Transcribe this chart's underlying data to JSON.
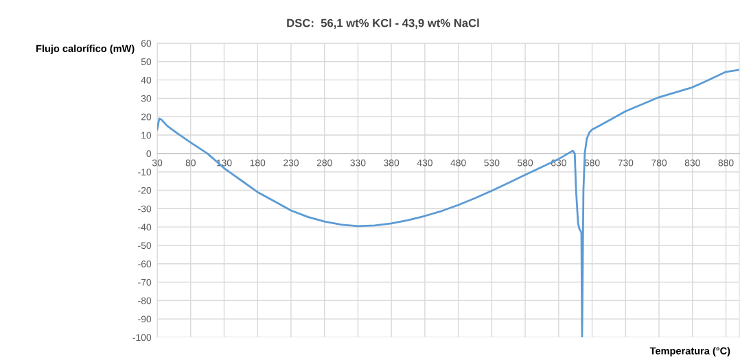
{
  "chart_data": {
    "type": "line",
    "title": "DSC:  56,1 wt% KCl - 43,9 wt% NaCl",
    "xlabel": "Temperatura (°C)",
    "ylabel": "Flujo calorífico (mW)",
    "series": [
      {
        "color": "#5b9bd5",
        "x": [
          30,
          33,
          36,
          45,
          60,
          80,
          105,
          130,
          155,
          180,
          205,
          230,
          255,
          280,
          305,
          330,
          355,
          380,
          405,
          430,
          455,
          480,
          505,
          530,
          555,
          580,
          605,
          630,
          651,
          654,
          656,
          659,
          661,
          664,
          665,
          666,
          667,
          669,
          672,
          676,
          680,
          694,
          730,
          780,
          830,
          845,
          880,
          900
        ],
        "values": [
          13,
          19,
          18.5,
          15,
          11,
          6,
          0,
          -8,
          -14.5,
          -21,
          -26,
          -31,
          -34.5,
          -37,
          -38.7,
          -39.5,
          -39.2,
          -38,
          -36.3,
          -34,
          -31.3,
          -28,
          -24.3,
          -20.3,
          -16,
          -11.6,
          -7.3,
          -3,
          1.5,
          0,
          -20,
          -38,
          -41,
          -43,
          -100,
          -60,
          -20,
          0,
          8,
          11.5,
          13,
          15.7,
          23,
          30.6,
          36,
          38.5,
          44.4,
          45.5
        ]
      }
    ],
    "xlim": [
      30,
      900
    ],
    "xticks": [
      30,
      80,
      130,
      180,
      230,
      280,
      330,
      380,
      430,
      480,
      530,
      580,
      630,
      680,
      730,
      780,
      830,
      880
    ],
    "ylim": [
      -100,
      60
    ],
    "yticks": [
      -100,
      -90,
      -80,
      -70,
      -60,
      -50,
      -40,
      -30,
      -20,
      -10,
      0,
      10,
      20,
      30,
      40,
      50,
      60
    ],
    "grid": true,
    "legend": false,
    "marker": "none",
    "line_style": "solid"
  }
}
